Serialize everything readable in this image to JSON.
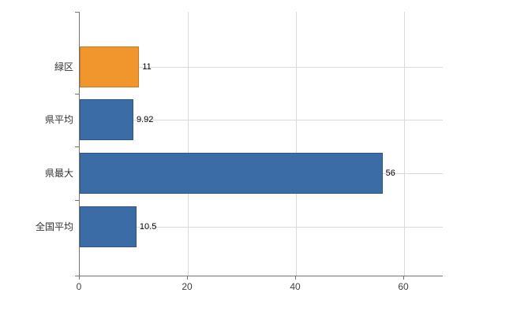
{
  "chart_data": {
    "type": "bar",
    "orientation": "horizontal",
    "title": "",
    "categories": [
      "緑区",
      "県平均",
      "県最大",
      "全国平均"
    ],
    "values": [
      11,
      9.92,
      56,
      10.5
    ],
    "value_labels": [
      "11",
      "9.92",
      "56",
      "10.5"
    ],
    "series": [
      {
        "name": "",
        "values": [
          11,
          9.92,
          56,
          10.5
        ]
      }
    ],
    "bar_colors": [
      "#F0962D",
      "#3B6CA5",
      "#3B6CA5",
      "#3B6CA5"
    ],
    "bar_border_colors": [
      "#C87B1F",
      "#2C5684",
      "#2C5684",
      "#2C5684"
    ],
    "x_tick_labels": [
      "0",
      "20",
      "40",
      "60"
    ],
    "x_tick_values": [
      0,
      20,
      40,
      60
    ],
    "xlim": [
      0,
      67.2
    ],
    "grid": true,
    "legend_position": "none"
  },
  "colors": {
    "background": "#ffffff",
    "axis": "#737373",
    "gridline": "#d9d9d9",
    "bar_blue": "#3B6CA5",
    "bar_orange": "#F0962D"
  }
}
